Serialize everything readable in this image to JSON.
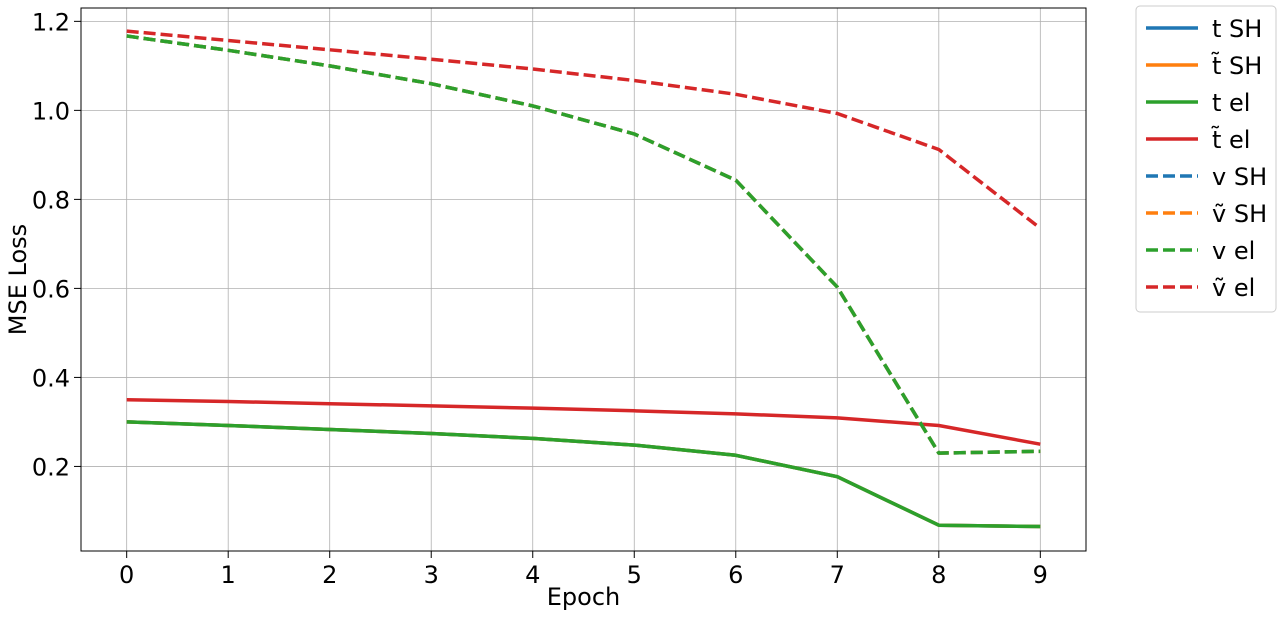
{
  "chart_data": {
    "type": "line",
    "xlabel": "Epoch",
    "ylabel": "MSE Loss",
    "x": [
      0,
      1,
      2,
      3,
      4,
      5,
      6,
      7,
      8,
      9
    ],
    "xlim": [
      -0.45,
      9.45
    ],
    "ylim": [
      0.01,
      1.23
    ],
    "xticks": [
      0,
      1,
      2,
      3,
      4,
      5,
      6,
      7,
      8,
      9
    ],
    "yticks": [
      0.2,
      0.4,
      0.6,
      0.8,
      1.0,
      1.2
    ],
    "ytick_labels": [
      "0.2",
      "0.4",
      "0.6",
      "0.8",
      "1.0",
      "1.2"
    ],
    "grid": true,
    "legend_position": "outside-right-top",
    "series": [
      {
        "name": "t SH",
        "color": "#1f77b4",
        "style": "solid",
        "values": [
          0.3,
          0.292,
          0.283,
          0.274,
          0.263,
          0.248,
          0.225,
          0.177,
          0.068,
          0.065
        ]
      },
      {
        "name": "t̃ SH",
        "color": "#ff7f0e",
        "style": "solid",
        "values": [
          0.3,
          0.292,
          0.283,
          0.274,
          0.263,
          0.248,
          0.225,
          0.177,
          0.068,
          0.065
        ]
      },
      {
        "name": "t el",
        "color": "#2ca02c",
        "style": "solid",
        "values": [
          0.3,
          0.292,
          0.283,
          0.274,
          0.263,
          0.248,
          0.225,
          0.177,
          0.068,
          0.065
        ]
      },
      {
        "name": "t̃ el",
        "color": "#d62728",
        "style": "solid",
        "values": [
          0.35,
          0.346,
          0.341,
          0.336,
          0.331,
          0.325,
          0.318,
          0.309,
          0.292,
          0.25
        ]
      },
      {
        "name": "v SH",
        "color": "#1f77b4",
        "style": "dashed",
        "values": [
          1.167,
          1.135,
          1.1,
          1.06,
          1.01,
          0.947,
          0.843,
          0.603,
          0.23,
          0.234
        ]
      },
      {
        "name": "ṽ SH",
        "color": "#ff7f0e",
        "style": "dashed",
        "values": [
          1.167,
          1.135,
          1.1,
          1.06,
          1.01,
          0.947,
          0.843,
          0.603,
          0.23,
          0.234
        ]
      },
      {
        "name": "v el",
        "color": "#2ca02c",
        "style": "dashed",
        "values": [
          1.167,
          1.135,
          1.1,
          1.06,
          1.01,
          0.947,
          0.843,
          0.603,
          0.23,
          0.234
        ]
      },
      {
        "name": "ṽ el",
        "color": "#d62728",
        "style": "dashed",
        "values": [
          1.178,
          1.157,
          1.136,
          1.115,
          1.093,
          1.067,
          1.036,
          0.993,
          0.912,
          0.735
        ]
      }
    ]
  }
}
